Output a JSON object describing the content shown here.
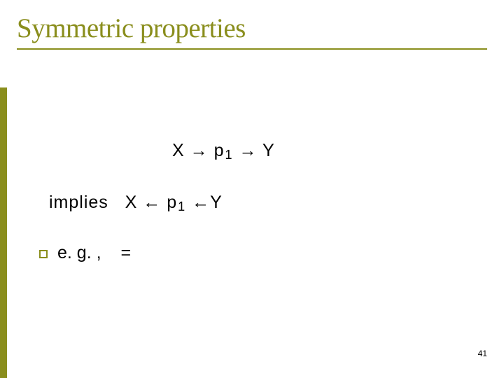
{
  "colors": {
    "accent": "#8a8e1d",
    "text": "#000000",
    "background": "#ffffff"
  },
  "title": "Symmetric properties",
  "formula_main": {
    "x": "X",
    "arrow1": "→",
    "p": "p",
    "sub": "1",
    "arrow2": "→",
    "y": "Y"
  },
  "implies": {
    "label": "implies",
    "x": "X",
    "arrow1": "←",
    "p": "p",
    "sub": "1",
    "arrow2": "←",
    "y": "Y"
  },
  "eg": {
    "label": "e. g. ,",
    "equals": "="
  },
  "slide_number": "41"
}
